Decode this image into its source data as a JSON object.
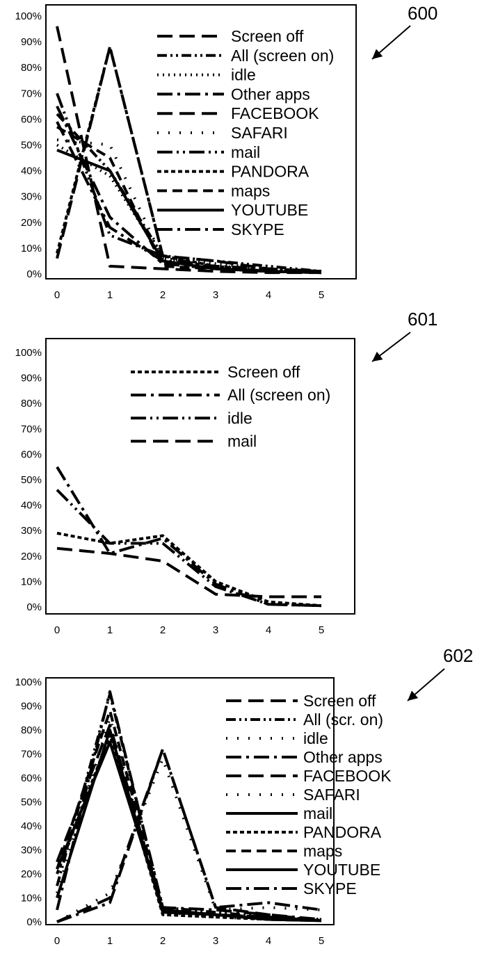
{
  "figure": {
    "charts": [
      {
        "ref_label": "600"
      },
      {
        "ref_label": "601"
      },
      {
        "ref_label": "602"
      }
    ]
  },
  "chart_data": [
    {
      "type": "line",
      "title": "",
      "xlabel": "",
      "ylabel": "",
      "x": [
        0,
        1,
        2,
        3,
        4,
        5
      ],
      "x_ticks": [
        "0",
        "1",
        "2",
        "3",
        "4",
        "5"
      ],
      "y_ticks": [
        "0%",
        "10%",
        "20%",
        "30%",
        "40%",
        "50%",
        "60%",
        "70%",
        "80%",
        "90%",
        "100%"
      ],
      "ylim": [
        0,
        100
      ],
      "xlim": [
        0,
        5
      ],
      "grid": false,
      "legend_position": "top-right",
      "series": [
        {
          "name": "Screen off",
          "dash": "long-dash",
          "values": [
            6,
            88,
            7,
            5,
            2,
            1
          ]
        },
        {
          "name": "All (screen on)",
          "dash": "dash-dot-dot",
          "values": [
            62,
            40,
            7,
            5,
            3,
            1
          ]
        },
        {
          "name": "idle",
          "dash": "dotted",
          "values": [
            50,
            38,
            6,
            4,
            2,
            1
          ]
        },
        {
          "name": "Other apps",
          "dash": "long-dash-dot",
          "values": [
            65,
            22,
            4,
            2,
            1,
            0.5
          ]
        },
        {
          "name": "FACEBOOK",
          "dash": "long-dash",
          "values": [
            96,
            3,
            2,
            1,
            0.5,
            0.5
          ]
        },
        {
          "name": "SAFARI",
          "dash": "dotted-sparse",
          "values": [
            52,
            50,
            6,
            3,
            2,
            1
          ]
        },
        {
          "name": "mail",
          "dash": "long-dash-dot-dot",
          "values": [
            70,
            15,
            7,
            2,
            1,
            0.5
          ]
        },
        {
          "name": "PANDORA",
          "dash": "short-dash",
          "values": [
            8,
            88,
            7,
            3,
            1,
            0.5
          ]
        },
        {
          "name": "maps",
          "dash": "dash",
          "values": [
            57,
            45,
            3,
            2,
            1,
            0.5
          ]
        },
        {
          "name": "YOUTUBE",
          "dash": "solid",
          "values": [
            48,
            40,
            5,
            2,
            1,
            0.5
          ]
        },
        {
          "name": "SKYPE",
          "dash": "long-dash-dot",
          "values": [
            59,
            18,
            5,
            3,
            2,
            1
          ]
        }
      ]
    },
    {
      "type": "line",
      "title": "",
      "xlabel": "",
      "ylabel": "",
      "x": [
        0,
        1,
        2,
        3,
        4,
        5
      ],
      "x_ticks": [
        "0",
        "1",
        "2",
        "3",
        "4",
        "5"
      ],
      "y_ticks": [
        "0%",
        "10%",
        "20%",
        "30%",
        "40%",
        "50%",
        "60%",
        "70%",
        "80%",
        "90%",
        "100%"
      ],
      "ylim": [
        0,
        100
      ],
      "xlim": [
        0,
        5
      ],
      "grid": false,
      "legend_position": "top-right",
      "series": [
        {
          "name": "Screen off",
          "dash": "short-dash",
          "values": [
            29,
            25,
            28,
            10,
            2,
            0.5
          ]
        },
        {
          "name": "All (screen on)",
          "dash": "long-dash-dot",
          "values": [
            55,
            21,
            27,
            9,
            1,
            0.5
          ]
        },
        {
          "name": "idle",
          "dash": "long-dash-dot-dot",
          "values": [
            46,
            25,
            25,
            8,
            1,
            0.5
          ]
        },
        {
          "name": "mail",
          "dash": "long-dash",
          "values": [
            23,
            21,
            18,
            5,
            4,
            4
          ]
        }
      ]
    },
    {
      "type": "line",
      "title": "",
      "xlabel": "",
      "ylabel": "",
      "x": [
        0,
        1,
        2,
        3,
        4,
        5
      ],
      "x_ticks": [
        "0",
        "1",
        "2",
        "3",
        "4",
        "5"
      ],
      "y_ticks": [
        "0%",
        "10%",
        "20%",
        "30%",
        "40%",
        "50%",
        "60%",
        "70%",
        "80%",
        "90%",
        "100%"
      ],
      "ylim": [
        0,
        100
      ],
      "xlim": [
        0,
        5
      ],
      "grid": false,
      "legend_position": "top-right",
      "series": [
        {
          "name": "Screen off",
          "dash": "long-dash",
          "values": [
            25,
            82,
            5,
            3,
            2,
            0.5
          ]
        },
        {
          "name": "All (scr. on)",
          "dash": "dash-dot-dot",
          "values": [
            15,
            95,
            6,
            4,
            2,
            1
          ]
        },
        {
          "name": "idle",
          "dash": "dotted-sparse",
          "values": [
            12,
            85,
            4,
            2,
            1,
            0.5
          ]
        },
        {
          "name": "Other apps",
          "dash": "long-dash-dot",
          "values": [
            5,
            96,
            6,
            5,
            3,
            1
          ]
        },
        {
          "name": "FACEBOOK",
          "dash": "long-dash",
          "values": [
            0,
            10,
            72,
            6,
            3,
            0.5
          ]
        },
        {
          "name": "SAFARI",
          "dash": "dotted-sparse",
          "values": [
            0,
            12,
            68,
            5,
            6,
            5
          ]
        },
        {
          "name": "mail",
          "dash": "solid",
          "values": [
            10,
            80,
            4,
            3,
            1,
            0.5
          ]
        },
        {
          "name": "PANDORA",
          "dash": "short-dash",
          "values": [
            20,
            78,
            3,
            2,
            1,
            0.5
          ]
        },
        {
          "name": "maps",
          "dash": "dash",
          "values": [
            22,
            88,
            5,
            3,
            2,
            0.5
          ]
        },
        {
          "name": "YOUTUBE",
          "dash": "solid",
          "values": [
            22,
            75,
            5,
            3,
            1,
            0.5
          ]
        },
        {
          "name": "SKYPE",
          "dash": "long-dash-dot",
          "values": [
            0,
            8,
            72,
            6,
            8,
            5
          ]
        }
      ]
    }
  ]
}
